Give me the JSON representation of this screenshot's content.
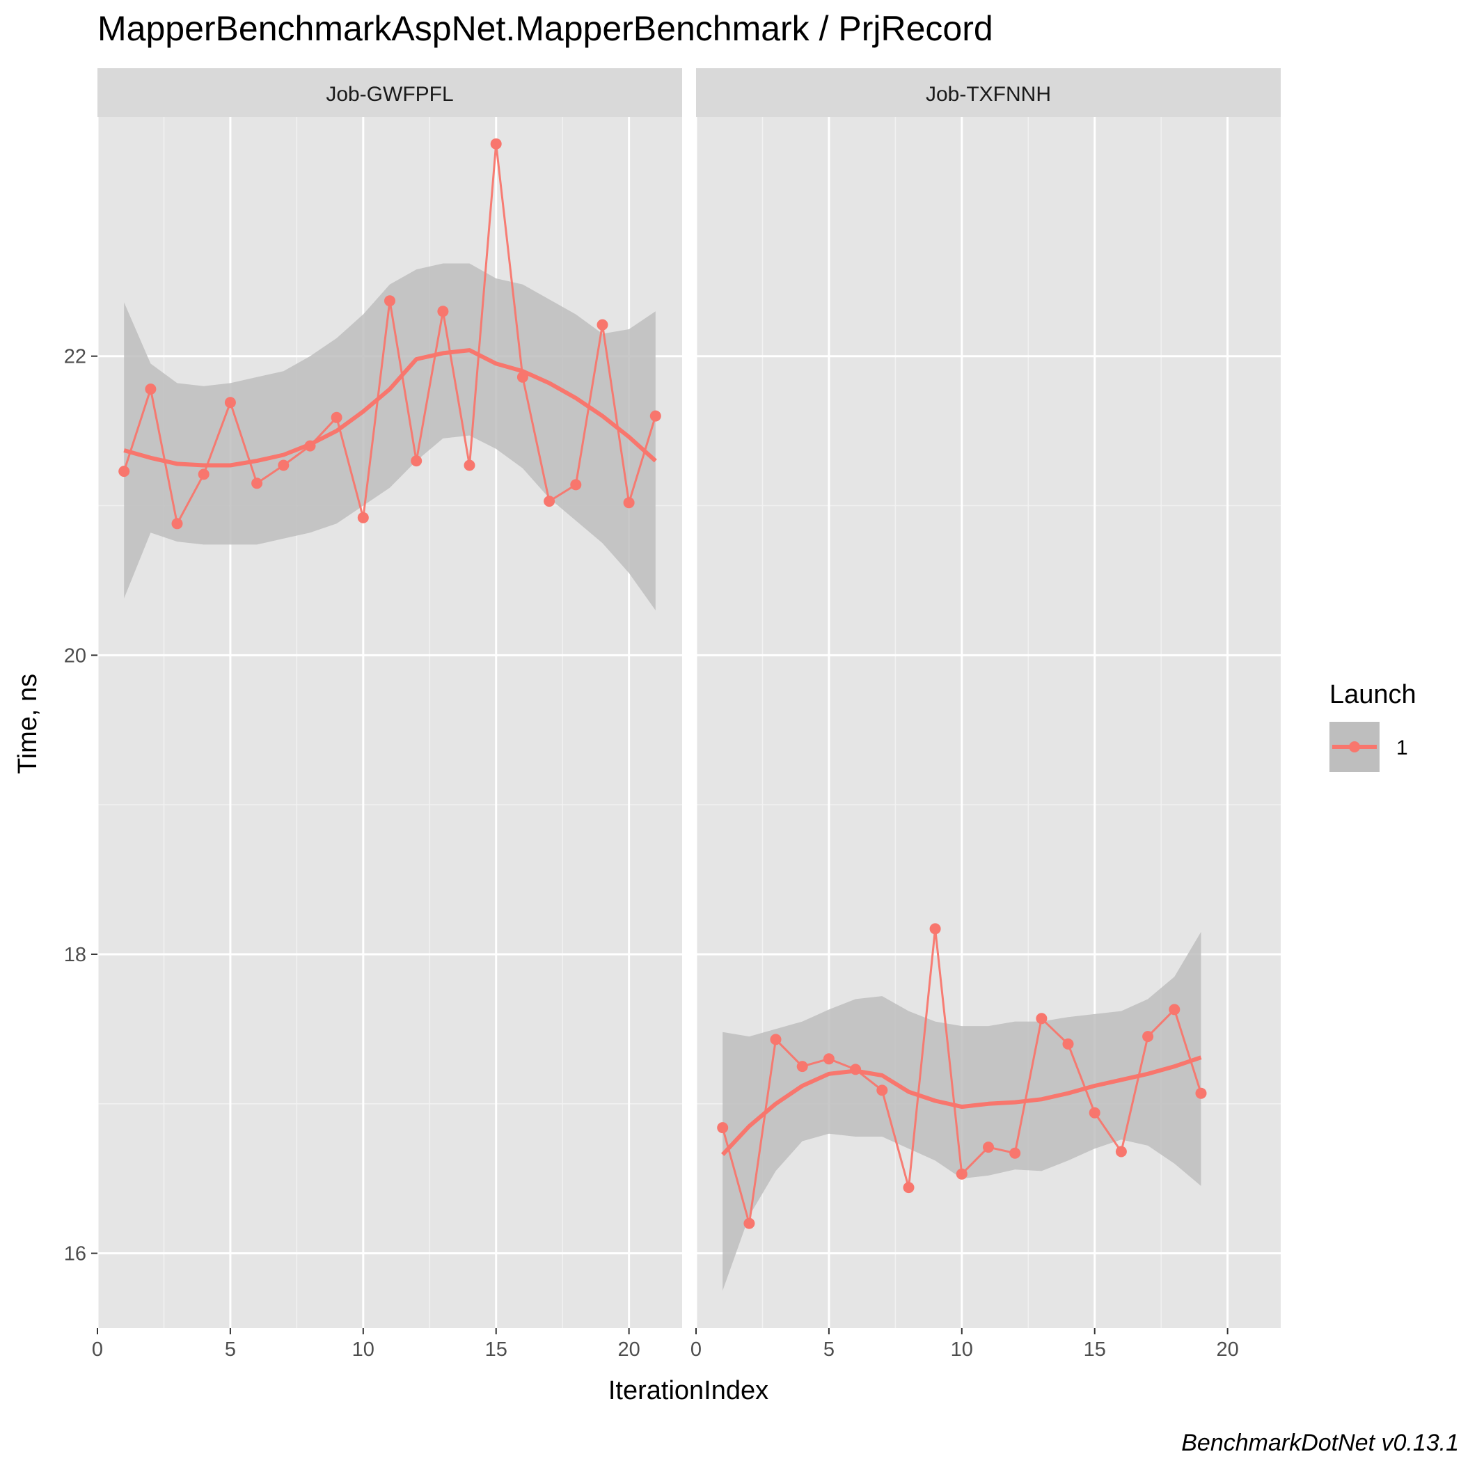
{
  "chart_data": {
    "type": "line",
    "title": "MapperBenchmarkAspNet.MapperBenchmark / PrjRecord",
    "xlabel": "IterationIndex",
    "ylabel": "Time, ns",
    "caption": "BenchmarkDotNet v0.13.1",
    "xlim": [
      0,
      22
    ],
    "ylim": [
      15.5,
      23.6
    ],
    "x_ticks": [
      0,
      5,
      10,
      15,
      20
    ],
    "y_ticks": [
      16,
      18,
      20,
      22
    ],
    "grid": true,
    "legend": {
      "title": "Launch",
      "position": "right",
      "entries": [
        "1"
      ]
    },
    "colors": {
      "series": "#F8766D",
      "smooth": "#F8766D",
      "band": "#BEBEBE",
      "panel": "#E5E5E5",
      "strip": "#D9D9D9"
    },
    "panels": [
      {
        "label": "Job-GWFPFL",
        "series": [
          {
            "name": "1",
            "x": [
              1,
              2,
              3,
              4,
              5,
              6,
              7,
              8,
              9,
              10,
              11,
              12,
              13,
              14,
              15,
              16,
              17,
              18,
              19,
              20,
              21
            ],
            "values": [
              21.23,
              21.78,
              20.88,
              21.21,
              21.69,
              21.15,
              21.27,
              21.4,
              21.59,
              20.92,
              22.37,
              21.3,
              22.3,
              21.27,
              23.42,
              21.86,
              21.03,
              21.14,
              22.21,
              21.02,
              21.6
            ]
          }
        ],
        "smooth": {
          "x": [
            1,
            2,
            3,
            4,
            5,
            6,
            7,
            8,
            9,
            10,
            11,
            12,
            13,
            14,
            15,
            16,
            17,
            18,
            19,
            20,
            21
          ],
          "values": [
            21.37,
            21.32,
            21.28,
            21.27,
            21.27,
            21.3,
            21.34,
            21.41,
            21.5,
            21.63,
            21.78,
            21.98,
            22.02,
            22.04,
            21.95,
            21.9,
            21.82,
            21.72,
            21.6,
            21.46,
            21.3
          ],
          "lower": [
            20.38,
            20.82,
            20.76,
            20.74,
            20.74,
            20.74,
            20.78,
            20.82,
            20.88,
            21.0,
            21.12,
            21.3,
            21.45,
            21.47,
            21.38,
            21.25,
            21.05,
            20.9,
            20.75,
            20.55,
            20.3
          ],
          "upper": [
            22.36,
            21.95,
            21.82,
            21.8,
            21.82,
            21.86,
            21.9,
            22.0,
            22.12,
            22.28,
            22.48,
            22.58,
            22.62,
            22.62,
            22.52,
            22.48,
            22.38,
            22.28,
            22.15,
            22.18,
            22.3
          ]
        }
      },
      {
        "label": "Job-TXFNNH",
        "series": [
          {
            "name": "1",
            "x": [
              1,
              2,
              3,
              4,
              5,
              6,
              7,
              8,
              9,
              10,
              11,
              12,
              13,
              14,
              15,
              16,
              17,
              18,
              19
            ],
            "values": [
              16.84,
              16.2,
              17.43,
              17.25,
              17.3,
              17.23,
              17.09,
              16.44,
              18.17,
              16.53,
              16.71,
              16.67,
              17.57,
              17.4,
              16.94,
              16.68,
              17.45,
              17.63,
              17.07
            ]
          }
        ],
        "smooth": {
          "x": [
            1,
            2,
            3,
            4,
            5,
            6,
            7,
            8,
            9,
            10,
            11,
            12,
            13,
            14,
            15,
            16,
            17,
            18,
            19
          ],
          "values": [
            16.66,
            16.85,
            17.0,
            17.12,
            17.2,
            17.22,
            17.19,
            17.08,
            17.02,
            16.98,
            17.0,
            17.01,
            17.03,
            17.07,
            17.12,
            17.16,
            17.2,
            17.25,
            17.31
          ],
          "lower": [
            15.75,
            16.25,
            16.55,
            16.75,
            16.8,
            16.78,
            16.78,
            16.7,
            16.62,
            16.5,
            16.52,
            16.56,
            16.55,
            16.62,
            16.7,
            16.76,
            16.72,
            16.6,
            16.45
          ],
          "upper": [
            17.48,
            17.45,
            17.5,
            17.55,
            17.63,
            17.7,
            17.72,
            17.62,
            17.55,
            17.52,
            17.52,
            17.55,
            17.55,
            17.58,
            17.6,
            17.62,
            17.7,
            17.85,
            18.15
          ]
        }
      }
    ]
  }
}
